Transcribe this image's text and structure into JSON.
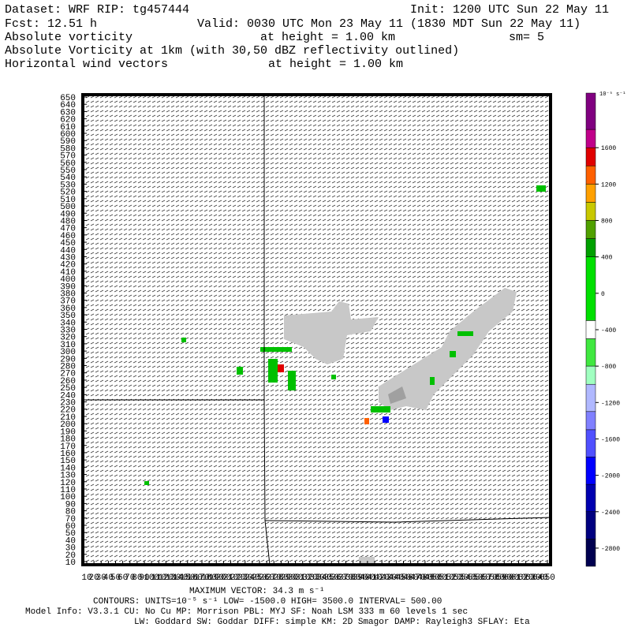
{
  "header": {
    "dataset": "Dataset: WRF  RIP: tg457444",
    "init": "Init: 1200 UTC Sun 22 May 11",
    "fcst": "Fcst:   12.51 h",
    "valid": "Valid: 0030 UTC Mon 23 May 11 (1830 MDT Sun 22 May 11)",
    "field1": "Absolute vorticity",
    "height1": "at height =  1.00 km",
    "smooth": "sm= 5",
    "field2": "Absolute Vorticity at 1km (with 30,50 dBZ reflectivity outlined)",
    "field3": "Horizontal wind vectors",
    "height3": "at height =  1.00 km"
  },
  "axes": {
    "xlim": [
      10,
      650
    ],
    "ylim": [
      10,
      650
    ],
    "xticks": [
      10,
      20,
      30,
      40,
      50,
      60,
      70,
      80,
      90,
      100,
      110,
      120,
      130,
      140,
      150,
      160,
      170,
      180,
      190,
      200,
      210,
      220,
      230,
      240,
      250,
      260,
      270,
      280,
      290,
      300,
      310,
      320,
      330,
      340,
      350,
      360,
      370,
      380,
      390,
      400,
      410,
      420,
      430,
      440,
      450,
      460,
      470,
      480,
      490,
      500,
      510,
      520,
      530,
      540,
      550,
      560,
      570,
      580,
      590,
      600,
      610,
      620,
      630,
      640,
      650
    ],
    "yticks": [
      10,
      20,
      30,
      40,
      50,
      60,
      70,
      80,
      90,
      100,
      110,
      120,
      130,
      140,
      150,
      160,
      170,
      180,
      190,
      200,
      210,
      220,
      230,
      240,
      250,
      260,
      270,
      280,
      290,
      300,
      310,
      320,
      330,
      340,
      350,
      360,
      370,
      380,
      390,
      400,
      410,
      420,
      430,
      440,
      450,
      460,
      470,
      480,
      490,
      500,
      510,
      520,
      530,
      540,
      550,
      560,
      570,
      580,
      590,
      600,
      610,
      620,
      630,
      640,
      650
    ]
  },
  "colorbar": {
    "units": "10⁻⁵ s⁻¹",
    "lim": [
      -3000,
      2200
    ],
    "ticks": [
      1600,
      1200,
      800,
      400,
      0,
      -400,
      -800,
      -1200,
      -1600,
      -2000,
      -2400,
      -2800
    ],
    "bounds": [
      2200,
      1800,
      1600,
      1400,
      1200,
      1000,
      800,
      600,
      400,
      -300,
      -500,
      -800,
      -1000,
      -1300,
      -1500,
      -1800,
      -2100,
      -2400,
      -2700,
      -3000
    ],
    "colors": [
      "#800080",
      "#c0008a",
      "#e00000",
      "#ff6000",
      "#ffa000",
      "#c8c800",
      "#50a000",
      "#00a000",
      "#00e000",
      "#ffffff",
      "#40e840",
      "#a0ffc0",
      "#b0b8ff",
      "#8080ff",
      "#5050ff",
      "#0000ff",
      "#0000b0",
      "#000080",
      "#000050"
    ]
  },
  "footer": {
    "maxvec": "MAXIMUM VECTOR:  34.3 m s⁻¹",
    "contours": "CONTOURS:  UNITS=10⁻⁵ s⁻¹  LOW= -1500.0       HIGH=  3500.0       INTERVAL=    500.00",
    "model": "Model Info: V3.3.1    CU: No Cu    MP: Morrison    PBL: MYJ     SF: Noah LSM    333 m   60 levels    1 sec",
    "physics": "LW: Goddard  SW: Goddar  DIFF: simple  KM: 2D Smagor  DAMP: Rayleigh3   SFLAY: Eta"
  }
}
